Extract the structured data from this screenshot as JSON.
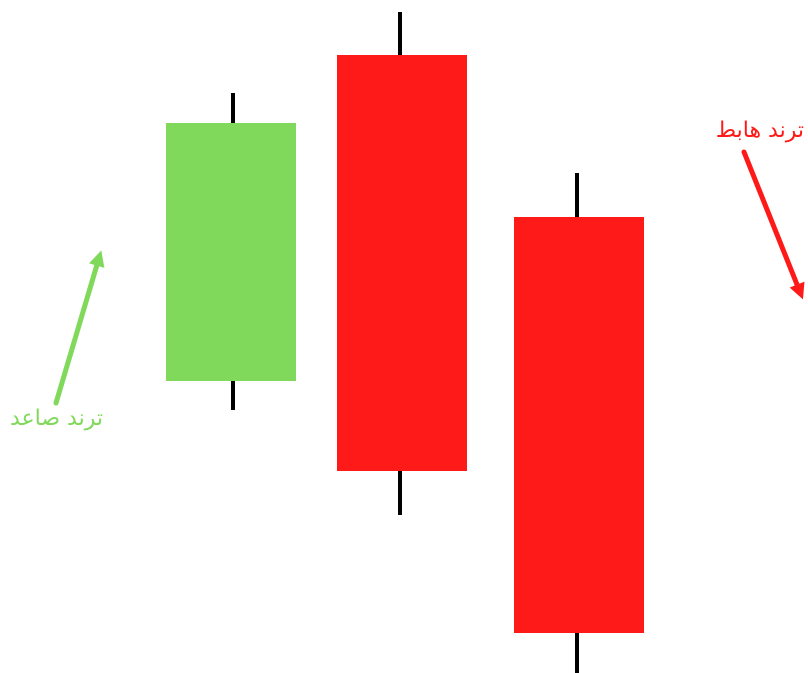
{
  "colors": {
    "bullish": "#80d95a",
    "bearish": "#ff1a1a",
    "wick": "#000000",
    "background": "#ffffff"
  },
  "candles": [
    {
      "name": "candle-bullish",
      "direction": "up"
    },
    {
      "name": "candle-bearish-1",
      "direction": "down"
    },
    {
      "name": "candle-bearish-2",
      "direction": "down"
    }
  ],
  "labels": {
    "uptrend": "ترند صاعد",
    "downtrend": "ترند هابط"
  },
  "arrows": {
    "uptrend_icon": "arrow-up-right-icon",
    "downtrend_icon": "arrow-down-right-icon"
  }
}
